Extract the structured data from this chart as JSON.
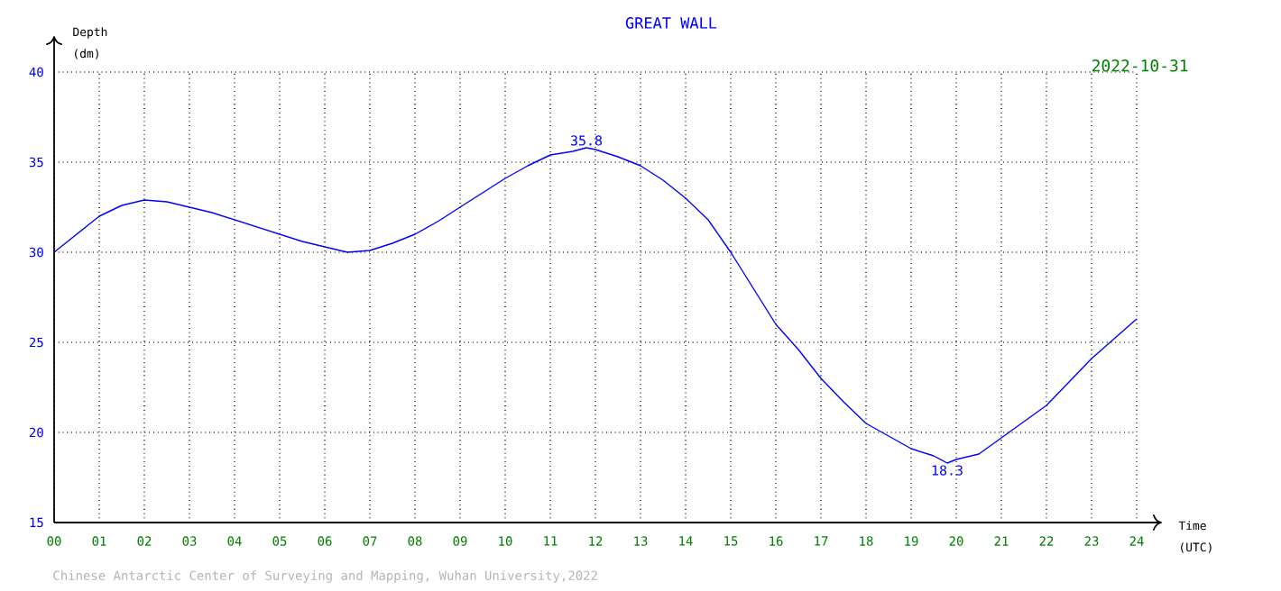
{
  "chart_data": {
    "type": "line",
    "title": "GREAT WALL",
    "xlabel": "Time (UTC)",
    "ylabel": "Depth (dm)",
    "x": [
      0,
      0.5,
      1,
      1.5,
      2,
      2.5,
      3,
      3.5,
      4,
      4.5,
      5,
      5.5,
      6,
      6.5,
      7,
      7.5,
      8,
      8.5,
      9,
      9.5,
      10,
      10.5,
      11,
      11.5,
      11.8,
      12,
      12.5,
      13,
      13.5,
      14,
      14.5,
      15,
      15.5,
      16,
      16.5,
      17,
      17.5,
      18,
      18.5,
      19,
      19.5,
      19.8,
      20,
      20.5,
      21,
      21.5,
      22,
      22.5,
      23,
      23.5,
      24
    ],
    "series": [
      {
        "color": "#0000ff",
        "values": [
          30.0,
          31.0,
          32.0,
          32.6,
          32.9,
          32.8,
          32.5,
          32.2,
          31.8,
          31.4,
          31.0,
          30.6,
          30.3,
          30.0,
          30.1,
          30.5,
          31.0,
          31.7,
          32.5,
          33.3,
          34.1,
          34.8,
          35.4,
          35.6,
          35.8,
          35.7,
          35.3,
          34.8,
          34.0,
          33.0,
          31.8,
          30.0,
          28.0,
          26.0,
          24.6,
          23.0,
          21.7,
          20.5,
          19.8,
          19.1,
          18.7,
          18.3,
          18.5,
          18.8,
          19.7,
          20.6,
          21.5,
          22.8,
          24.1,
          25.2,
          26.3
        ]
      }
    ],
    "xlim": [
      0,
      24
    ],
    "ylim": [
      15,
      40
    ],
    "xticks": [
      {
        "value": 0,
        "label": "00"
      },
      {
        "value": 1,
        "label": "01"
      },
      {
        "value": 2,
        "label": "02"
      },
      {
        "value": 3,
        "label": "03"
      },
      {
        "value": 4,
        "label": "04"
      },
      {
        "value": 5,
        "label": "05"
      },
      {
        "value": 6,
        "label": "06"
      },
      {
        "value": 7,
        "label": "07"
      },
      {
        "value": 8,
        "label": "08"
      },
      {
        "value": 9,
        "label": "09"
      },
      10,
      11,
      12,
      13,
      14,
      15,
      16,
      17,
      18,
      19,
      20,
      21,
      22,
      23,
      24
    ],
    "yticks": [
      15,
      20,
      25,
      30,
      35,
      40
    ],
    "grid": true,
    "marker": "none",
    "annotations": [
      {
        "text": "35.8",
        "x": 11.8,
        "y": 35.8
      },
      {
        "text": "18.3",
        "x": 19.8,
        "y": 18.3
      },
      "2022-10-31",
      "Chinese Antarctic Center of Surveying and Mapping, Wuhan University,2022"
    ]
  }
}
